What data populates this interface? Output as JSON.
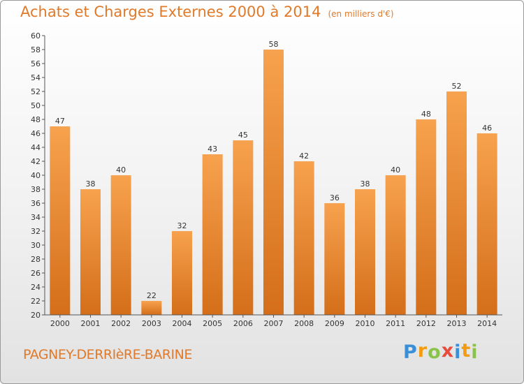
{
  "header": {
    "title": "Achats et Charges Externes 2000 à 2014",
    "unit": "(en milliers d'€)"
  },
  "footer": {
    "commune": "PAGNEY-DERRIèRE-BARINE",
    "logo_letters": [
      "P",
      "r",
      "o",
      "x",
      "i",
      "t",
      "i"
    ],
    "logo_colors": [
      "#3a8fd6",
      "#f39c12",
      "#8bc34a",
      "#e74c3c",
      "#3a8fd6",
      "#f39c12",
      "#8bc34a"
    ]
  },
  "colors": {
    "bar_top": "#f7a24e",
    "bar_bottom": "#d46e1a",
    "accent": "#e07a2a"
  },
  "chart_data": {
    "type": "bar",
    "categories": [
      "2000",
      "2001",
      "2002",
      "2003",
      "2004",
      "2005",
      "2006",
      "2007",
      "2008",
      "2009",
      "2010",
      "2011",
      "2012",
      "2013",
      "2014"
    ],
    "values": [
      47,
      38,
      40,
      22,
      32,
      43,
      45,
      58,
      42,
      36,
      38,
      40,
      48,
      52,
      46
    ],
    "ylim": [
      20,
      60
    ],
    "ytick_step": 2,
    "grid": false,
    "data_labels": true
  }
}
